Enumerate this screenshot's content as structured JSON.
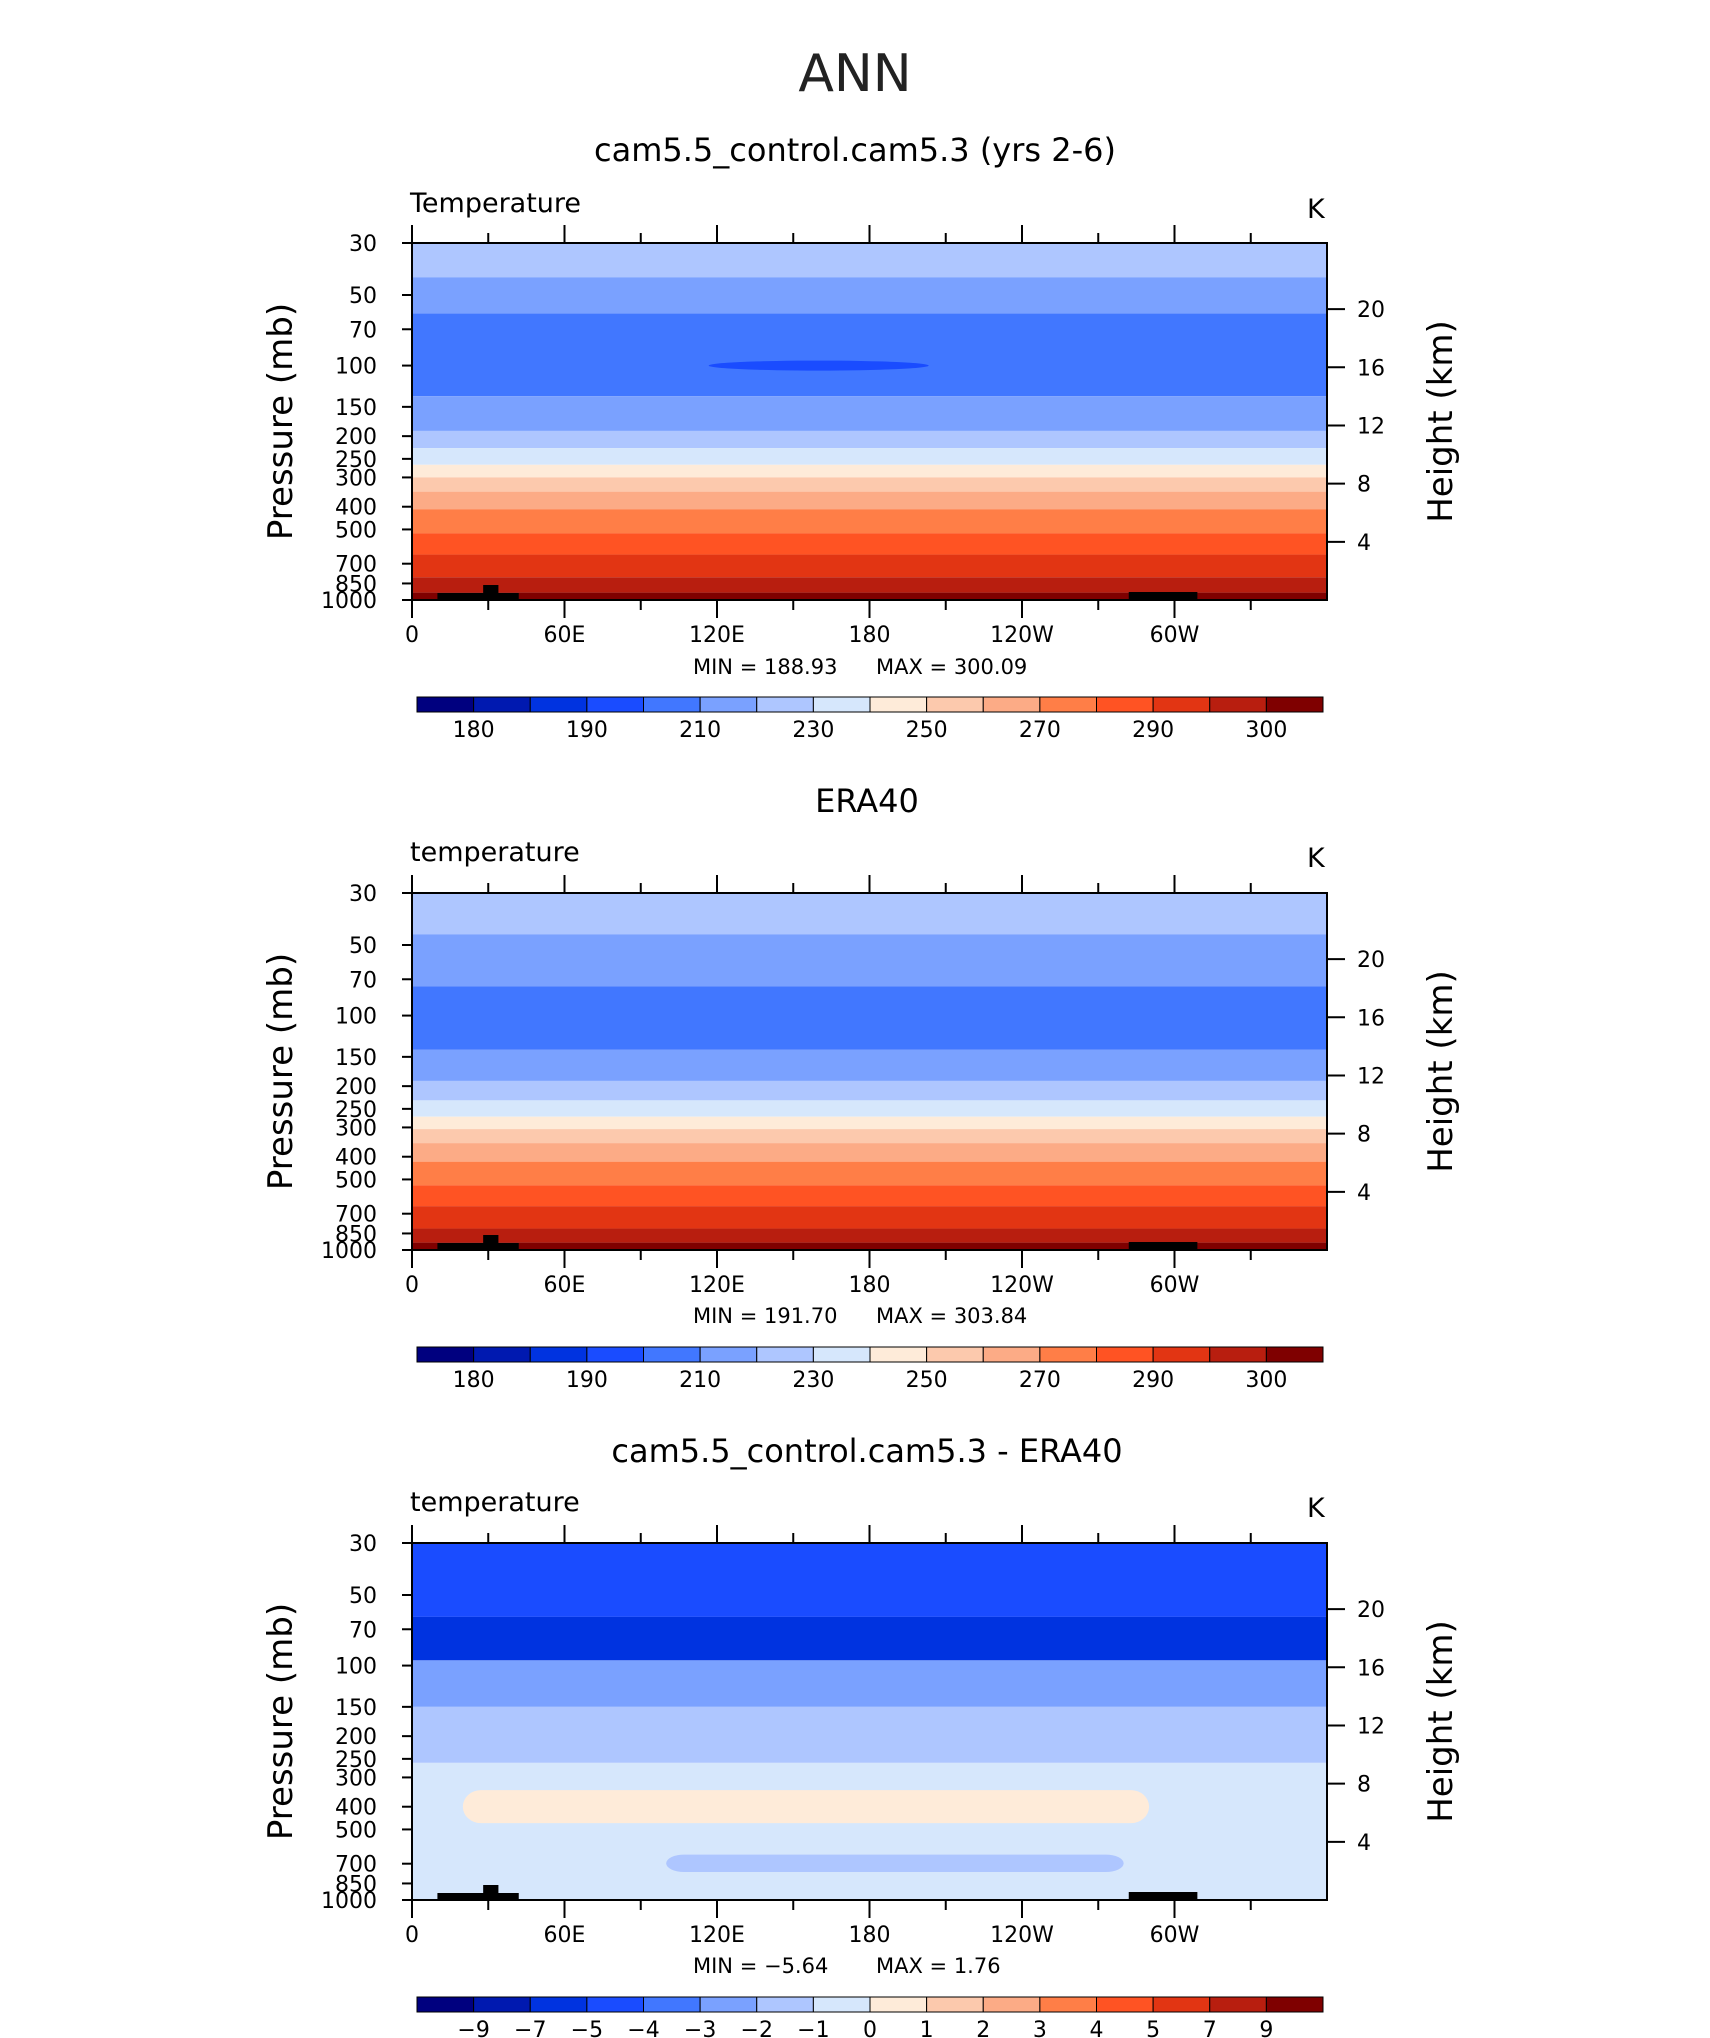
{
  "page_title": "ANN",
  "panels": [
    {
      "title": "cam5.5_control.cam5.3 (yrs 2-6)",
      "left_label": "Temperature",
      "right_label": "K",
      "stats": {
        "min": "188.93",
        "max": "300.09"
      },
      "min_label": "MIN  =  188.93",
      "max_label": "MAX  =  300.09"
    },
    {
      "title": "ERA40",
      "left_label": "temperature",
      "right_label": "K",
      "stats": {
        "min": "191.70",
        "max": "303.84"
      },
      "min_label": "MIN  =  191.70",
      "max_label": "MAX  =  303.84"
    },
    {
      "title": "cam5.5_control.cam5.3 - ERA40",
      "left_label": "temperature",
      "right_label": "K",
      "stats": {
        "min": "−5.64",
        "max": "1.76"
      },
      "min_label": "MIN  =   −5.64",
      "max_label": "MAX  =     1.76"
    }
  ],
  "axes": {
    "ylabel_left": "Pressure  (mb)",
    "ylabel_right": "Height  (km)",
    "pressure_ticks": [
      "30",
      "50",
      "70",
      "100",
      "150",
      "200",
      "250",
      "300",
      "400",
      "500",
      "700",
      "850",
      "1000"
    ],
    "height_ticks": [
      "20",
      "16",
      "12",
      "8",
      "4"
    ],
    "lon_ticks": [
      "0",
      "60E",
      "120E",
      "180",
      "120W",
      "60W"
    ]
  },
  "colorbars": {
    "temperature_labels": [
      "180",
      "190",
      "210",
      "230",
      "250",
      "270",
      "290",
      "300"
    ],
    "difference_labels": [
      "−9",
      "−7",
      "−5",
      "−4",
      "−3",
      "−2",
      "−1",
      "0",
      "1",
      "2",
      "3",
      "4",
      "5",
      "7",
      "9"
    ],
    "colors": [
      "#00007f",
      "#0019b0",
      "#0033e0",
      "#1a4cff",
      "#4177ff",
      "#7aa1ff",
      "#aec6ff",
      "#d6e7fc",
      "#feebd9",
      "#fcc9ad",
      "#fcab86",
      "#ff7e47",
      "#ff5323",
      "#e23513",
      "#b81e0f",
      "#7f0000"
    ]
  },
  "chart_data": [
    {
      "type": "heatmap",
      "title": "cam5.5_control.cam5.3 (yrs 2-6)",
      "variable": "Temperature",
      "units": "K",
      "xlabel": "",
      "ylabel": "Pressure  (mb)",
      "y2label": "Height  (km)",
      "x_ticks": [
        "0",
        "60E",
        "120E",
        "180",
        "120W",
        "60W"
      ],
      "y_log": true,
      "ylim": [
        1000,
        30
      ],
      "min": 188.93,
      "max": 300.09,
      "levels": [
        175,
        180,
        185,
        190,
        200,
        210,
        220,
        230,
        240,
        250,
        260,
        270,
        280,
        290,
        295,
        300
      ],
      "bands": [
        {
          "p_top": 30,
          "p_bottom": 42,
          "value": 212
        },
        {
          "p_top": 42,
          "p_bottom": 60,
          "value": 205
        },
        {
          "p_top": 60,
          "p_bottom": 135,
          "value": 195
        },
        {
          "p_top": 135,
          "p_bottom": 190,
          "value": 205
        },
        {
          "p_top": 190,
          "p_bottom": 225,
          "value": 215
        },
        {
          "p_top": 225,
          "p_bottom": 265,
          "value": 225
        },
        {
          "p_top": 265,
          "p_bottom": 300,
          "value": 235
        },
        {
          "p_top": 300,
          "p_bottom": 345,
          "value": 245
        },
        {
          "p_top": 345,
          "p_bottom": 410,
          "value": 255
        },
        {
          "p_top": 410,
          "p_bottom": 520,
          "value": 265
        },
        {
          "p_top": 520,
          "p_bottom": 640,
          "value": 275
        },
        {
          "p_top": 640,
          "p_bottom": 800,
          "value": 285
        },
        {
          "p_top": 800,
          "p_bottom": 930,
          "value": 292
        },
        {
          "p_top": 930,
          "p_bottom": 1000,
          "value": 297
        }
      ],
      "features": [
        {
          "kind": "cold-core",
          "lon_center": 160,
          "p": 100,
          "value": 185
        }
      ]
    },
    {
      "type": "heatmap",
      "title": "ERA40",
      "variable": "temperature",
      "units": "K",
      "xlabel": "",
      "ylabel": "Pressure  (mb)",
      "y2label": "Height  (km)",
      "x_ticks": [
        "0",
        "60E",
        "120E",
        "180",
        "120W",
        "60W"
      ],
      "y_log": true,
      "ylim": [
        1000,
        30
      ],
      "min": 191.7,
      "max": 303.84,
      "levels": [
        175,
        180,
        185,
        190,
        200,
        210,
        220,
        230,
        240,
        250,
        260,
        270,
        280,
        290,
        295,
        300
      ],
      "bands": [
        {
          "p_top": 30,
          "p_bottom": 45,
          "value": 215
        },
        {
          "p_top": 45,
          "p_bottom": 75,
          "value": 205
        },
        {
          "p_top": 75,
          "p_bottom": 140,
          "value": 195
        },
        {
          "p_top": 140,
          "p_bottom": 190,
          "value": 205
        },
        {
          "p_top": 190,
          "p_bottom": 230,
          "value": 215
        },
        {
          "p_top": 230,
          "p_bottom": 270,
          "value": 225
        },
        {
          "p_top": 270,
          "p_bottom": 305,
          "value": 235
        },
        {
          "p_top": 305,
          "p_bottom": 350,
          "value": 245
        },
        {
          "p_top": 350,
          "p_bottom": 420,
          "value": 255
        },
        {
          "p_top": 420,
          "p_bottom": 530,
          "value": 265
        },
        {
          "p_top": 530,
          "p_bottom": 650,
          "value": 275
        },
        {
          "p_top": 650,
          "p_bottom": 810,
          "value": 285
        },
        {
          "p_top": 810,
          "p_bottom": 930,
          "value": 292
        },
        {
          "p_top": 930,
          "p_bottom": 1000,
          "value": 297
        }
      ]
    },
    {
      "type": "heatmap",
      "title": "cam5.5_control.cam5.3 - ERA40",
      "variable": "temperature",
      "units": "K",
      "xlabel": "",
      "ylabel": "Pressure  (mb)",
      "y2label": "Height  (km)",
      "x_ticks": [
        "0",
        "60E",
        "120E",
        "180",
        "120W",
        "60W"
      ],
      "y_log": true,
      "ylim": [
        1000,
        30
      ],
      "min": -5.64,
      "max": 1.76,
      "levels": [
        -9,
        -7,
        -5,
        -4,
        -3,
        -2,
        -1,
        0,
        1,
        2,
        3,
        4,
        5,
        7,
        9
      ],
      "bands": [
        {
          "p_top": 30,
          "p_bottom": 62,
          "value": -4.5
        },
        {
          "p_top": 62,
          "p_bottom": 95,
          "value": -5.2
        },
        {
          "p_top": 95,
          "p_bottom": 150,
          "value": -2.5
        },
        {
          "p_top": 150,
          "p_bottom": 260,
          "value": -1.5
        },
        {
          "p_top": 260,
          "p_bottom": 1000,
          "value": -0.5
        }
      ],
      "features": [
        {
          "kind": "warm-region",
          "lon_range": [
            20,
            290
          ],
          "p_range": [
            340,
            470
          ],
          "value": 0.5
        },
        {
          "kind": "cool-region",
          "lon_range": [
            100,
            280
          ],
          "p_range": [
            640,
            760
          ],
          "value": -1.5
        }
      ]
    }
  ]
}
